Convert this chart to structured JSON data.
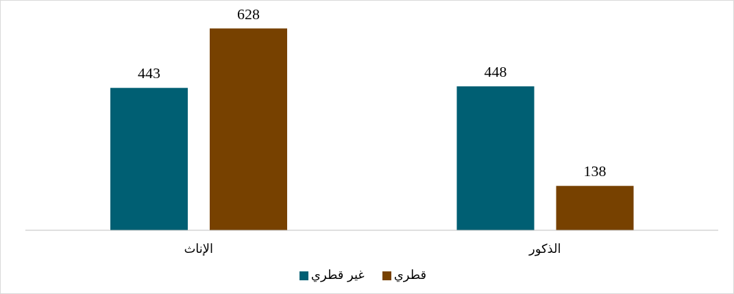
{
  "chart_data": {
    "type": "bar",
    "categories": [
      "الإناث",
      "الذكور"
    ],
    "series": [
      {
        "name": "غير قطري",
        "color": "#005f73",
        "values": [
          443,
          448
        ]
      },
      {
        "name": "قطري",
        "color": "#774100",
        "values": [
          628,
          138
        ]
      }
    ],
    "data_labels": true,
    "grid": false,
    "legend": "bottom"
  }
}
